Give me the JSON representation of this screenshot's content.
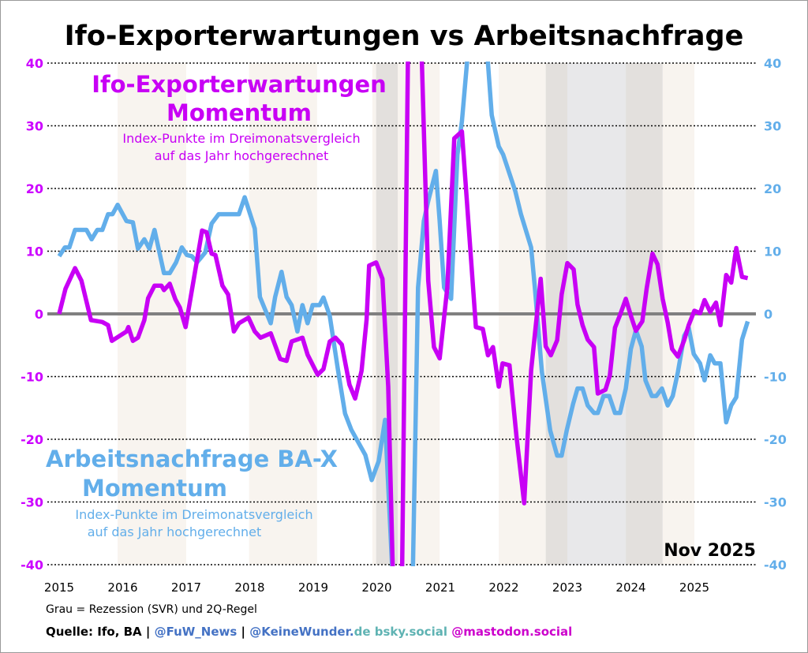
{
  "chart_data": {
    "type": "line",
    "title": "Ifo-Exporterwartungen vs Arbeitsnachfrage",
    "date_label": "Nov 2025",
    "x_ticks": [
      "2015",
      "2016",
      "2017",
      "2018",
      "2019",
      "2020",
      "2021",
      "2022",
      "2023",
      "2024",
      "2025"
    ],
    "xlim": [
      2015,
      2026
    ],
    "y_left": {
      "ylim": [
        -40,
        40
      ],
      "ticks": [
        "40",
        "30",
        "20",
        "10",
        "0",
        "-10",
        "-20",
        "-30",
        "-40"
      ],
      "color": "#cc00ff"
    },
    "y_right": {
      "ylim": [
        -40,
        40
      ],
      "ticks": [
        "40",
        "30",
        "20",
        "10",
        "0",
        "-10",
        "-20",
        "-30",
        "-40"
      ],
      "color": "#62aeea"
    },
    "grid": "horizontal dotted",
    "zero_line_color": "#808080",
    "shaded_periods": [
      {
        "from": 2015.92,
        "to": 2017.0,
        "kind": "beige"
      },
      {
        "from": 2017.99,
        "to": 2019.06,
        "kind": "beige"
      },
      {
        "from": 2019.93,
        "to": 2020.99,
        "kind": "beige"
      },
      {
        "from": 2021.92,
        "to": 2022.66,
        "kind": "beige"
      },
      {
        "from": 2024.5,
        "to": 2025.0,
        "kind": "beige"
      },
      {
        "from": 2019.99,
        "to": 2020.33,
        "kind": "grey-dark"
      },
      {
        "from": 2022.66,
        "to": 2023.0,
        "kind": "grey-dark"
      },
      {
        "from": 2023.0,
        "to": 2023.92,
        "kind": "grey-light"
      },
      {
        "from": 2023.92,
        "to": 2024.5,
        "kind": "grey-dark"
      }
    ],
    "series": [
      {
        "name": "Ifo-Exporterwartungen Momentum",
        "subtitle": [
          "Index-Punkte im Dreimonatsvergleich",
          "auf das Jahr hochgerechnet"
        ],
        "color": "#c800f5",
        "axis": "left",
        "points": [
          [
            2015.0,
            0
          ],
          [
            2015.1,
            4
          ],
          [
            2015.25,
            7.3
          ],
          [
            2015.35,
            5.3
          ],
          [
            2015.5,
            -1
          ],
          [
            2015.68,
            -1.3
          ],
          [
            2015.77,
            -1.8
          ],
          [
            2015.83,
            -4.3
          ],
          [
            2016.06,
            -2.8
          ],
          [
            2016.09,
            -2.1
          ],
          [
            2016.16,
            -4.3
          ],
          [
            2016.24,
            -3.8
          ],
          [
            2016.34,
            -1
          ],
          [
            2016.4,
            2.5
          ],
          [
            2016.5,
            4.5
          ],
          [
            2016.61,
            4.5
          ],
          [
            2016.65,
            3.8
          ],
          [
            2016.74,
            4.8
          ],
          [
            2016.83,
            2.3
          ],
          [
            2016.9,
            1
          ],
          [
            2016.99,
            -2.1
          ],
          [
            2017.25,
            13.3
          ],
          [
            2017.32,
            13
          ],
          [
            2017.4,
            9.6
          ],
          [
            2017.46,
            9.4
          ],
          [
            2017.57,
            4.5
          ],
          [
            2017.66,
            3.1
          ],
          [
            2017.75,
            -2.8
          ],
          [
            2017.83,
            -1.5
          ],
          [
            2017.98,
            -0.6
          ],
          [
            2018.08,
            -2.8
          ],
          [
            2018.17,
            -3.8
          ],
          [
            2018.33,
            -3.1
          ],
          [
            2018.48,
            -7.2
          ],
          [
            2018.58,
            -7.5
          ],
          [
            2018.66,
            -4.4
          ],
          [
            2018.83,
            -3.8
          ],
          [
            2018.91,
            -6.5
          ],
          [
            2019.07,
            -9.7
          ],
          [
            2019.16,
            -8.8
          ],
          [
            2019.26,
            -4.4
          ],
          [
            2019.35,
            -3.8
          ],
          [
            2019.45,
            -4.9
          ],
          [
            2019.57,
            -11.3
          ],
          [
            2019.66,
            -13.5
          ],
          [
            2019.76,
            -9.1
          ],
          [
            2019.84,
            -0.9
          ],
          [
            2019.88,
            7.7
          ],
          [
            2019.99,
            8.2
          ],
          [
            2020.09,
            5.6
          ],
          [
            2020.18,
            -11.6
          ],
          [
            2020.25,
            -40
          ],
          [
            2020.32,
            -62
          ],
          [
            2020.4,
            -40
          ],
          [
            2020.49,
            40
          ],
          [
            2020.6,
            62
          ],
          [
            2020.71,
            40
          ],
          [
            2020.81,
            5.3
          ],
          [
            2020.9,
            -5.3
          ],
          [
            2020.99,
            -7.1
          ],
          [
            2021.11,
            4.2
          ],
          [
            2021.22,
            28
          ],
          [
            2021.34,
            29.1
          ],
          [
            2021.56,
            -2.1
          ],
          [
            2021.67,
            -2.4
          ],
          [
            2021.75,
            -6.6
          ],
          [
            2021.83,
            -5.3
          ],
          [
            2021.92,
            -11.6
          ],
          [
            2021.98,
            -7.9
          ],
          [
            2022.09,
            -8.2
          ],
          [
            2022.2,
            -19.6
          ],
          [
            2022.32,
            -30.2
          ],
          [
            2022.43,
            -9
          ],
          [
            2022.58,
            5.6
          ],
          [
            2022.66,
            -5.2
          ],
          [
            2022.74,
            -6.6
          ],
          [
            2022.84,
            -4.2
          ],
          [
            2022.91,
            3.1
          ],
          [
            2023.0,
            8.1
          ],
          [
            2023.1,
            7.1
          ],
          [
            2023.16,
            1.5
          ],
          [
            2023.24,
            -1.8
          ],
          [
            2023.32,
            -4.1
          ],
          [
            2023.42,
            -5.3
          ],
          [
            2023.48,
            -12.7
          ],
          [
            2023.6,
            -12.1
          ],
          [
            2023.67,
            -9.8
          ],
          [
            2023.75,
            -2.2
          ],
          [
            2023.84,
            0.1
          ],
          [
            2023.92,
            2.4
          ],
          [
            2024.01,
            -0.6
          ],
          [
            2024.08,
            -2.7
          ],
          [
            2024.18,
            -1.2
          ],
          [
            2024.25,
            4.1
          ],
          [
            2024.34,
            9.6
          ],
          [
            2024.42,
            7.9
          ],
          [
            2024.5,
            2.4
          ],
          [
            2024.58,
            -1.4
          ],
          [
            2024.65,
            -5.6
          ],
          [
            2024.74,
            -6.8
          ],
          [
            2024.84,
            -4.2
          ],
          [
            2024.91,
            -1.8
          ],
          [
            2025.0,
            0.5
          ],
          [
            2025.09,
            0.1
          ],
          [
            2025.16,
            2.2
          ],
          [
            2025.25,
            0.3
          ],
          [
            2025.34,
            1.8
          ],
          [
            2025.41,
            -1.8
          ],
          [
            2025.5,
            6.2
          ],
          [
            2025.58,
            5
          ],
          [
            2025.66,
            10.5
          ],
          [
            2025.75,
            5.9
          ],
          [
            2025.84,
            5.7
          ]
        ]
      },
      {
        "name": "Arbeitsnachfrage BA-X Momentum",
        "subtitle": [
          "Index-Punkte im Dreimonatsvergleich",
          "auf das Jahr hochgerechnet"
        ],
        "color": "#62aeea",
        "axis": "right",
        "points": [
          [
            2015.0,
            9.2
          ],
          [
            2015.09,
            10.6
          ],
          [
            2015.16,
            10.6
          ],
          [
            2015.25,
            13.4
          ],
          [
            2015.43,
            13.4
          ],
          [
            2015.51,
            11.9
          ],
          [
            2015.6,
            13.4
          ],
          [
            2015.68,
            13.4
          ],
          [
            2015.77,
            15.9
          ],
          [
            2015.84,
            15.9
          ],
          [
            2015.92,
            17.4
          ],
          [
            2016.06,
            14.8
          ],
          [
            2016.16,
            14.6
          ],
          [
            2016.24,
            10.4
          ],
          [
            2016.34,
            11.9
          ],
          [
            2016.42,
            10.4
          ],
          [
            2016.5,
            13.4
          ],
          [
            2016.65,
            6.5
          ],
          [
            2016.74,
            6.5
          ],
          [
            2016.84,
            8.2
          ],
          [
            2016.93,
            10.6
          ],
          [
            2017.01,
            9.4
          ],
          [
            2017.09,
            9.2
          ],
          [
            2017.17,
            8.2
          ],
          [
            2017.3,
            9.8
          ],
          [
            2017.4,
            14.4
          ],
          [
            2017.51,
            15.9
          ],
          [
            2017.83,
            15.9
          ],
          [
            2017.92,
            18.6
          ],
          [
            2018.08,
            13.6
          ],
          [
            2018.16,
            2.7
          ],
          [
            2018.33,
            -1.5
          ],
          [
            2018.4,
            2.7
          ],
          [
            2018.5,
            6.7
          ],
          [
            2018.58,
            2.7
          ],
          [
            2018.66,
            1.4
          ],
          [
            2018.75,
            -2.8
          ],
          [
            2018.83,
            1.4
          ],
          [
            2018.91,
            -1.5
          ],
          [
            2018.99,
            1.4
          ],
          [
            2019.1,
            1.4
          ],
          [
            2019.16,
            2.6
          ],
          [
            2019.26,
            -0.3
          ],
          [
            2019.39,
            -9
          ],
          [
            2019.5,
            -15.9
          ],
          [
            2019.6,
            -18.5
          ],
          [
            2019.82,
            -22.5
          ],
          [
            2019.92,
            -26.5
          ],
          [
            2020.03,
            -23.5
          ],
          [
            2020.13,
            -16.9
          ],
          [
            2020.24,
            -40
          ],
          [
            2020.34,
            -60
          ],
          [
            2020.5,
            -60
          ],
          [
            2020.57,
            -40
          ],
          [
            2020.65,
            4.2
          ],
          [
            2020.74,
            14.8
          ],
          [
            2020.81,
            18
          ],
          [
            2020.93,
            22.8
          ],
          [
            2020.99,
            14.8
          ],
          [
            2021.06,
            4.2
          ],
          [
            2021.17,
            2.4
          ],
          [
            2021.27,
            25.4
          ],
          [
            2021.34,
            30.7
          ],
          [
            2021.42,
            40
          ],
          [
            2021.52,
            55
          ],
          [
            2021.65,
            55
          ],
          [
            2021.75,
            40
          ],
          [
            2021.81,
            31.7
          ],
          [
            2021.92,
            26.7
          ],
          [
            2021.99,
            25.4
          ],
          [
            2022.18,
            19.6
          ],
          [
            2022.27,
            15.9
          ],
          [
            2022.43,
            10.6
          ],
          [
            2022.49,
            4.1
          ],
          [
            2022.6,
            -9.3
          ],
          [
            2022.73,
            -18.6
          ],
          [
            2022.84,
            -22.6
          ],
          [
            2022.91,
            -22.6
          ],
          [
            2022.99,
            -18.6
          ],
          [
            2023.09,
            -14.4
          ],
          [
            2023.16,
            -11.9
          ],
          [
            2023.24,
            -11.9
          ],
          [
            2023.32,
            -14.6
          ],
          [
            2023.42,
            -15.8
          ],
          [
            2023.48,
            -15.8
          ],
          [
            2023.57,
            -13.1
          ],
          [
            2023.66,
            -13.1
          ],
          [
            2023.75,
            -15.8
          ],
          [
            2023.83,
            -15.8
          ],
          [
            2023.92,
            -11.9
          ],
          [
            2024.0,
            -5.6
          ],
          [
            2024.08,
            -2.6
          ],
          [
            2024.17,
            -5.2
          ],
          [
            2024.23,
            -10.6
          ],
          [
            2024.33,
            -13.1
          ],
          [
            2024.4,
            -13.1
          ],
          [
            2024.49,
            -11.9
          ],
          [
            2024.58,
            -14.6
          ],
          [
            2024.66,
            -13.1
          ],
          [
            2024.74,
            -9.3
          ],
          [
            2024.84,
            -3.5
          ],
          [
            2024.91,
            -2.2
          ],
          [
            2024.99,
            -6.4
          ],
          [
            2025.09,
            -7.9
          ],
          [
            2025.16,
            -10.6
          ],
          [
            2025.25,
            -6.6
          ],
          [
            2025.32,
            -7.9
          ],
          [
            2025.41,
            -7.9
          ],
          [
            2025.5,
            -17.3
          ],
          [
            2025.58,
            -14.6
          ],
          [
            2025.66,
            -13.3
          ],
          [
            2025.75,
            -4.1
          ],
          [
            2025.84,
            -1.2
          ]
        ]
      }
    ]
  },
  "annotations": {
    "ifo_title": [
      "Ifo-Exporterwartungen",
      "Momentum"
    ],
    "ifo_sub": [
      "Index-Punkte im Dreimonatsvergleich",
      "auf das Jahr hochgerechnet"
    ],
    "ba_title": [
      "Arbeitsnachfrage BA-X",
      "Momentum"
    ],
    "ba_sub": [
      "Index-Punkte im Dreimonatsvergleich",
      "auf das Jahr hochgerechnet"
    ]
  },
  "footer": {
    "note": "Grau = Rezession (SVR) und 2Q-Regel",
    "source": [
      {
        "text": "Quelle: Ifo, BA | ",
        "color": "#000000"
      },
      {
        "text": "@FuW_News",
        "color": "#4472c4"
      },
      {
        "text": " | ",
        "color": "#000000"
      },
      {
        "text": "@KeineWunder.",
        "color": "#4472c4"
      },
      {
        "text": "de bsky.social ",
        "color": "#5fb3b3"
      },
      {
        "text": "@mastodon.social",
        "color": "#cc00cc"
      }
    ]
  }
}
